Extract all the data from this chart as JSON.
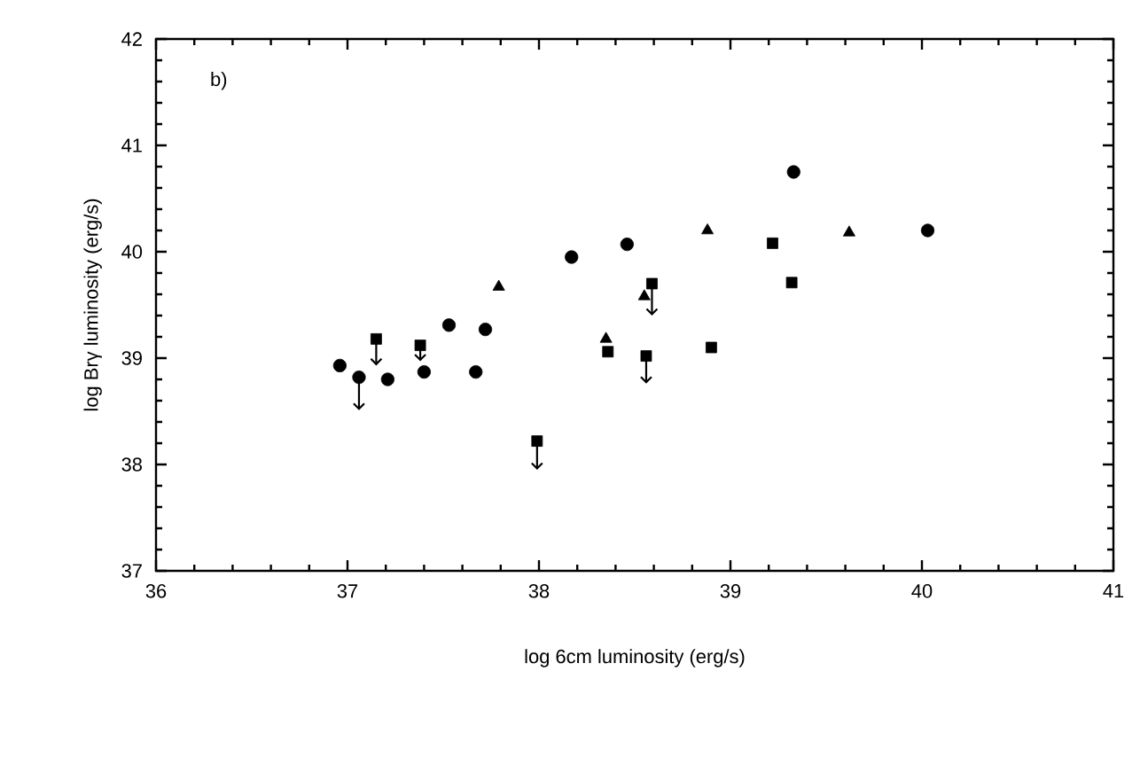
{
  "chart_data": {
    "type": "scatter",
    "xlabel": "log 6cm luminosity (erg/s)",
    "ylabel": "log Brγ luminosity (erg/s)",
    "annotations": [
      "b)"
    ],
    "xlim": [
      36,
      41
    ],
    "ylim": [
      37,
      42
    ],
    "xticks": [
      36,
      37,
      38,
      39,
      40,
      41
    ],
    "yticks": [
      37,
      38,
      39,
      40,
      41,
      42
    ],
    "grid": false,
    "series": [
      {
        "marker": "circle",
        "color": "#000000",
        "x": [
          36.96,
          37.06,
          37.21,
          37.4,
          37.53,
          37.67,
          37.72,
          38.17,
          38.46,
          39.33,
          40.03
        ],
        "values": [
          38.93,
          38.82,
          38.8,
          38.87,
          39.31,
          38.87,
          39.27,
          39.95,
          40.07,
          40.75,
          40.2
        ],
        "errors": [
          null,
          [
            38.51,
            38.82
          ],
          null,
          null,
          null,
          null,
          null,
          null,
          null,
          null,
          null
        ]
      },
      {
        "marker": "square",
        "color": "#000000",
        "x": [
          37.15,
          37.38,
          37.99,
          38.36,
          38.56,
          38.59,
          38.9,
          39.22,
          39.32
        ],
        "values": [
          39.18,
          39.12,
          38.22,
          39.06,
          39.02,
          39.7,
          39.1,
          40.08,
          39.71
        ],
        "errors": [
          [
            38.93,
            39.18
          ],
          [
            38.97,
            39.12
          ],
          [
            37.95,
            38.22
          ],
          null,
          [
            38.76,
            39.02
          ],
          [
            39.4,
            39.7
          ],
          null,
          null,
          null
        ]
      },
      {
        "marker": "triangle",
        "color": "#000000",
        "x": [
          37.79,
          38.35,
          38.55,
          38.88,
          39.62
        ],
        "values": [
          39.67,
          39.18,
          39.58,
          40.2,
          40.18
        ]
      }
    ]
  }
}
